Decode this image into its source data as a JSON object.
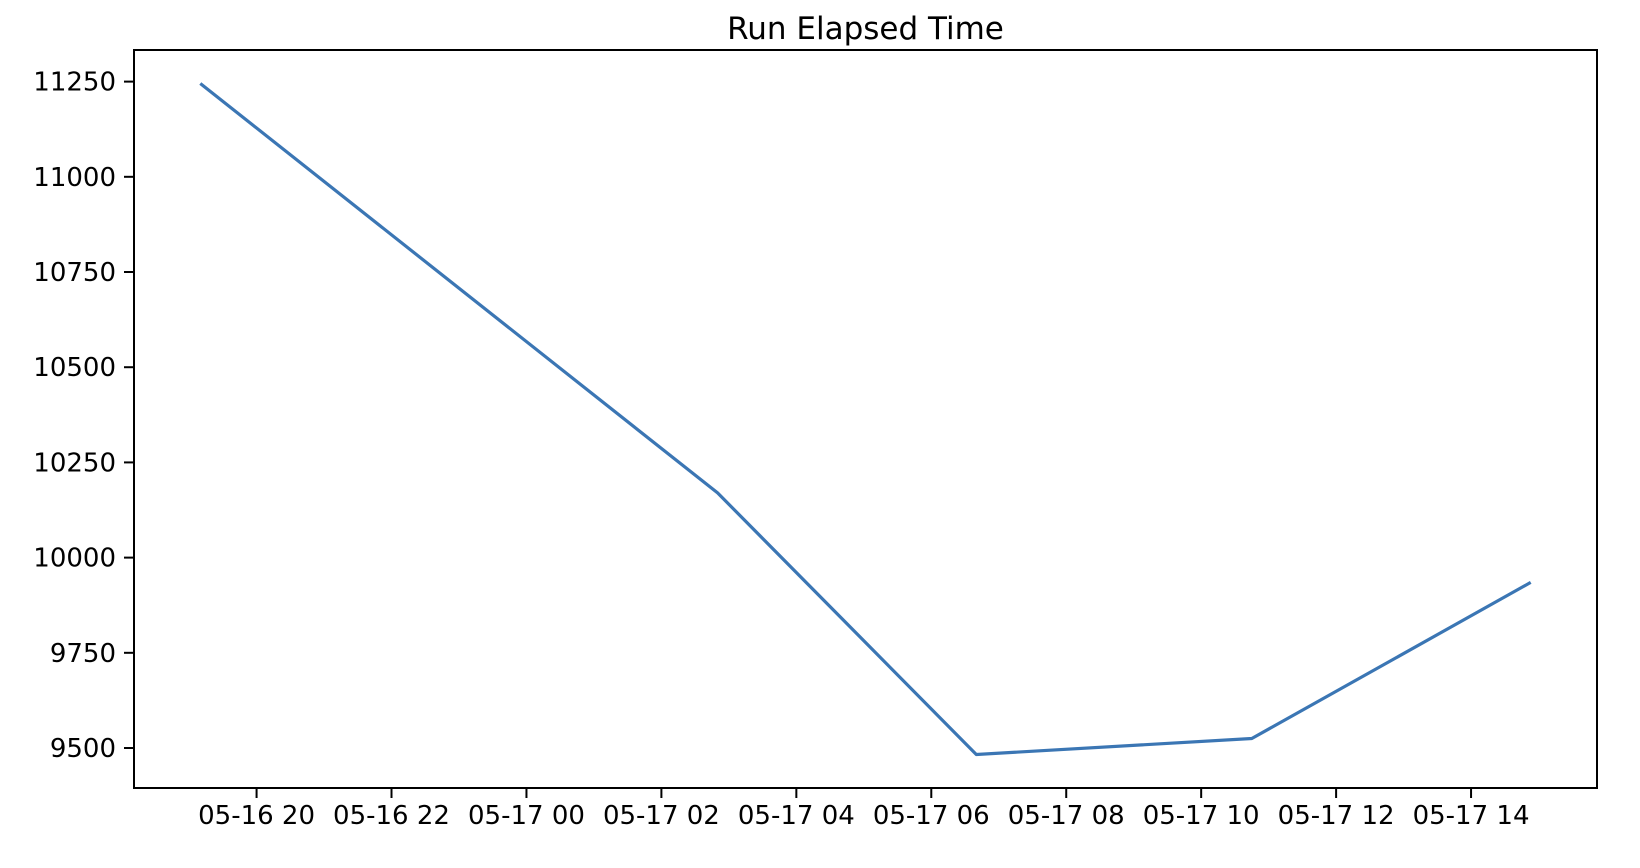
{
  "chart_data": {
    "type": "line",
    "title": "Run Elapsed Time",
    "xlabel": "",
    "ylabel": "",
    "grid": false,
    "legend": "none",
    "background_color": "#ffffff",
    "axes_color": "#000000",
    "xlim": [
      "05-16 18:11",
      "05-17 15:52"
    ],
    "ylim": [
      9395,
      11333
    ],
    "x_tick_labels": [
      "05-16 20",
      "05-16 22",
      "05-17 00",
      "05-17 02",
      "05-17 04",
      "05-17 06",
      "05-17 08",
      "05-17 10",
      "05-17 12",
      "05-17 14"
    ],
    "y_tick_values": [
      9500,
      9750,
      10000,
      10250,
      10500,
      10750,
      11000,
      11250
    ],
    "series": [
      {
        "name": "Run Elapsed Time",
        "color": "#3b76b4",
        "line_width": 3.2,
        "points": [
          {
            "t": "05-16 19:10",
            "v": 11245
          },
          {
            "t": "05-17 02:50",
            "v": 10170
          },
          {
            "t": "05-17 06:40",
            "v": 9483
          },
          {
            "t": "05-17 10:45",
            "v": 9525
          },
          {
            "t": "05-17 14:53",
            "v": 9935
          }
        ]
      }
    ]
  }
}
